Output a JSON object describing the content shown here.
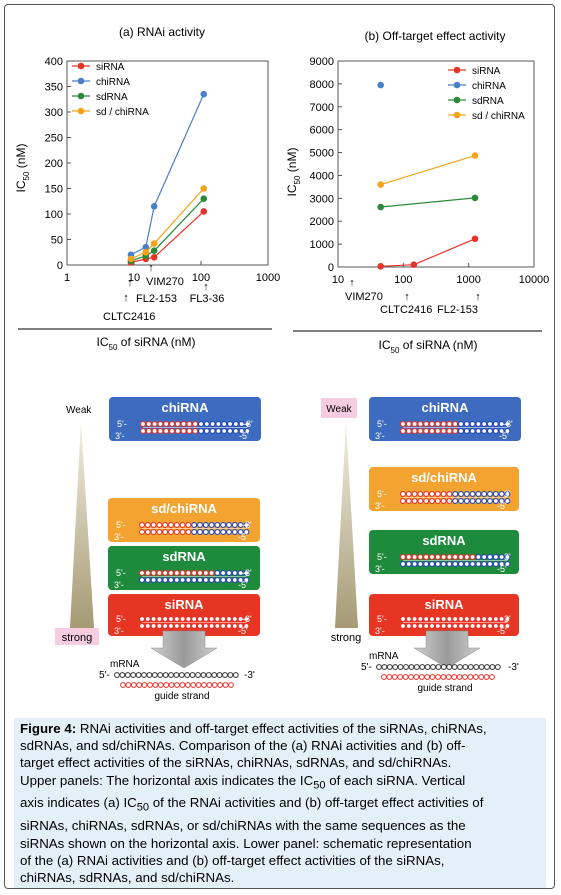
{
  "chart_data": [
    {
      "type": "scatter",
      "title": "(a) RNAi activity",
      "xlabel": "IC50 of siRNA (nM)",
      "ylabel": "IC50 (nM)",
      "xscale": "log",
      "xlim": [
        1,
        1000
      ],
      "ylim": [
        0,
        400
      ],
      "xticks": [
        "1",
        "10",
        "100",
        "1000"
      ],
      "yticks": [
        "0",
        "50",
        "100",
        "150",
        "200",
        "250",
        "300",
        "350",
        "400"
      ],
      "legend": "top-left",
      "x": [
        9,
        15,
        20,
        110
      ],
      "x_labels": [
        "CLTC2416",
        "FL2-153",
        "VIM270",
        "FL3-36"
      ],
      "series": [
        {
          "name": "siRNA",
          "color": "#e8332a",
          "values": [
            5,
            12,
            15,
            105
          ]
        },
        {
          "name": "chiRNA",
          "color": "#4a7fc9",
          "values": [
            20,
            35,
            115,
            335
          ]
        },
        {
          "name": "sdRNA",
          "color": "#2c8a3a",
          "values": [
            8,
            18,
            28,
            130
          ]
        },
        {
          "name": "sd / chiRNA",
          "color": "#f7a21b",
          "values": [
            12,
            25,
            42,
            150
          ]
        }
      ]
    },
    {
      "type": "scatter",
      "title": "(b) Off-target effect activity",
      "xlabel": "IC50 of siRNA (nM)",
      "ylabel": "IC50 (nM)",
      "xscale": "log",
      "xlim": [
        10,
        10000
      ],
      "ylim": [
        0,
        9000
      ],
      "xticks": [
        "10",
        "100",
        "1000",
        "10000"
      ],
      "yticks": [
        "0",
        "1000",
        "2000",
        "3000",
        "4000",
        "5000",
        "6000",
        "7000",
        "8000",
        "9000"
      ],
      "legend": "top-right",
      "x_labels": [
        "VIM270",
        "CLTC2416",
        "FL2-153"
      ],
      "series": [
        {
          "name": "siRNA",
          "color": "#e8332a",
          "x": [
            45,
            145,
            1250
          ],
          "values": [
            30,
            100,
            1230
          ]
        },
        {
          "name": "chiRNA",
          "color": "#4a7fc9",
          "x": [
            45
          ],
          "values": [
            7950
          ]
        },
        {
          "name": "sdRNA",
          "color": "#2c8a3a",
          "x": [
            45,
            1250
          ],
          "values": [
            2620,
            3020
          ]
        },
        {
          "name": "sd / chiRNA",
          "color": "#f7a21b",
          "x": [
            45,
            1250
          ],
          "values": [
            3600,
            4870
          ]
        }
      ]
    }
  ],
  "schematic": {
    "weak_label": "Weak",
    "strong_label": "strong",
    "mrna_label": "mRNA",
    "guide_label": "guide strand",
    "prime5": "5'",
    "prime3": "3'",
    "prime5_dash": "5'-",
    "prime3_dash": "-3'",
    "prime3_dash_left": "3'-",
    "prime5_dash_right": "-5'",
    "chiRNA": "chiRNA",
    "sdchiRNA_a": "sd/chiRNA",
    "sdchiRNA_b": "sd/chiRNA",
    "sdRNA": "sdRNA",
    "siRNA": "siRNA",
    "colors": {
      "blue": "#3d6bbf",
      "orange": "#f2a330",
      "green": "#1e8a3c",
      "red": "#e63523",
      "pink": "#f6cde0"
    }
  },
  "caption": {
    "fig_label": "Figure 4:",
    "line1": " RNAi activities and off-target effect activities of the siRNAs, chiRNAs,",
    "line2": "sdRNAs, and sd/chiRNAs. Comparison of the (a) RNAi activities and (b) off-",
    "line3": "target effect activities of the siRNAs, chiRNAs, sdRNAs, and sd/chiRNAs.",
    "line4a": "Upper panels: The horizontal axis indicates the IC",
    "sub50": "50",
    "line4b": " of each siRNA. Vertical",
    "line5a": "axis indicates (a) IC",
    "line5b": " of the RNAi activities and (b) off-target effect activities of",
    "line6": "siRNAs, chiRNAs, sdRNAs, or sd/chiRNAs with the same sequences as the",
    "line7": "siRNAs shown on the horizontal axis. Lower panel: schematic representation",
    "line8": "of the (a) RNAi activities and (b) off-target effect activities of the siRNAs,",
    "line9": "chiRNAs, sdRNAs, and sd/chiRNAs."
  }
}
